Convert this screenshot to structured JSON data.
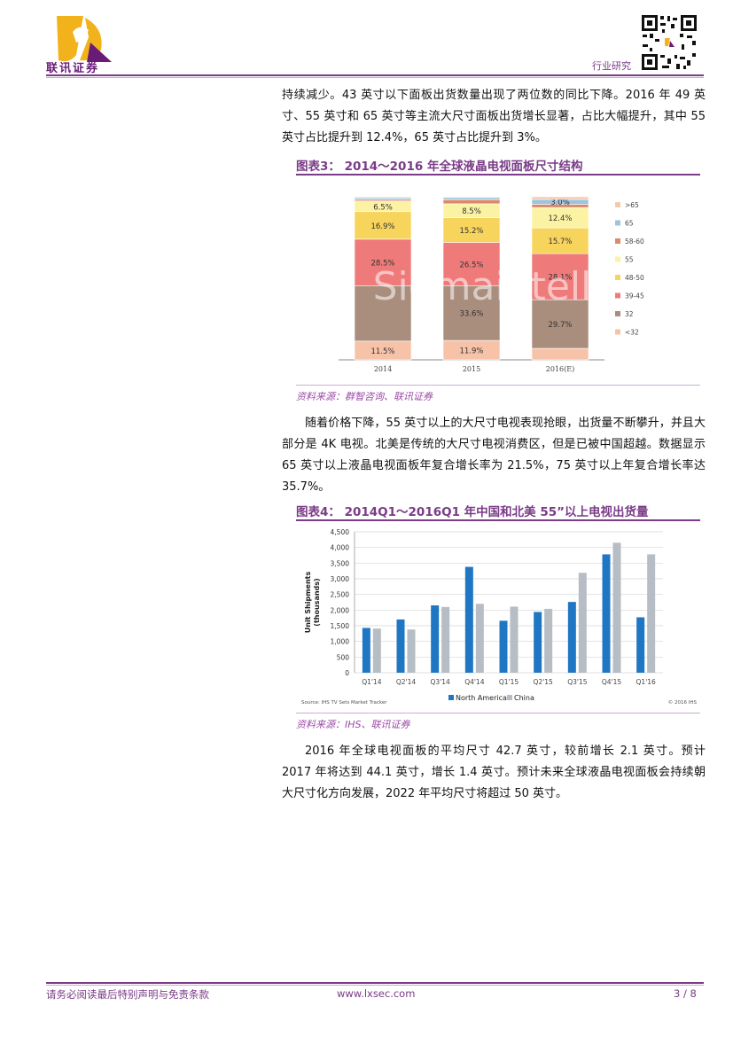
{
  "header": {
    "company_name": "联讯证券",
    "section": "行业研究"
  },
  "paragraphs": {
    "p1": "持续减少。43 英寸以下面板出货数量出现了两位数的同比下降。2016 年 49 英寸、55 英寸和 65 英寸等主流大尺寸面板出货增长显著，占比大幅提升，其中 55 英寸占比提升到 12.4%，65 英寸占比提升到 3%。",
    "p2": "随着价格下降，55 英寸以上的大尺寸电视表现抢眼，出货量不断攀升，并且大部分是 4K 电视。北美是传统的大尺寸电视消费区，但是已被中国超越。数据显示 65 英寸以上液晶电视面板年复合增长率为 21.5%，75 英寸以上年复合增长率达 35.7%。",
    "p3": "2016 年全球电视面板的平均尺寸 42.7 英寸，较前增长 2.1 英寸。预计 2017 年将达到 44.1 英寸，增长 1.4 英寸。预计未来全球液晶电视面板会持续朝大尺寸化方向发展，2022 年平均尺寸将超过 50 英寸。"
  },
  "figure3": {
    "caption": "图表3：  2014～2016 年全球液晶电视面板尺寸结构",
    "source": "资料来源：群智咨询、联讯证券",
    "watermark": "Sigmaintell"
  },
  "figure4": {
    "caption": "图表4：  2014Q1～2016Q1 年中国和北美 55”以上电视出货量",
    "source": "资料来源：IHS、联讯证券",
    "source_note": "Source: IHS TV Sets Market Tracker",
    "copyright": "© 2016 IHS"
  },
  "chart_data": [
    {
      "type": "bar",
      "stacked": true,
      "categories": [
        "2014",
        "2015",
        "2016(E)"
      ],
      "series": [
        {
          "name": "<32",
          "values": [
            11.5,
            11.9,
            7.0
          ],
          "color": "#f7c3a8"
        },
        {
          "name": "32",
          "values": [
            34.0,
            33.6,
            29.7
          ],
          "color": "#a98d7d"
        },
        {
          "name": "39-45",
          "values": [
            28.5,
            26.5,
            28.1
          ],
          "color": "#ef7a7a"
        },
        {
          "name": "48-50",
          "values": [
            16.9,
            15.2,
            15.7
          ],
          "color": "#f7d45c"
        },
        {
          "name": "55",
          "values": [
            6.5,
            8.5,
            12.4
          ],
          "color": "#fbf3a3"
        },
        {
          "name": "58-60",
          "values": [
            1.0,
            2.5,
            2.0
          ],
          "color": "#d88a6a"
        },
        {
          "name": "65",
          "values": [
            1.0,
            1.3,
            3.0
          ],
          "color": "#9ec3dd"
        },
        {
          "name": ">65",
          "values": [
            0.6,
            0.5,
            1.6
          ],
          "color": "#f5c9b0"
        }
      ],
      "labels": {
        "2014": {
          "<32": "11.5%",
          "39-45": "28.5%",
          "48-50": "16.9%",
          "55": "6.5%"
        },
        "2015": {
          "<32": "11.9%",
          "32": "33.6%",
          "39-45": "26.5%",
          "48-50": "15.2%",
          "55": "8.5%"
        },
        "2016(E)": {
          "32": "29.7%",
          "39-45": "28.1%",
          "48-50": "15.7%",
          "55": "12.4%",
          "65": "3.0%"
        }
      },
      "ylim": [
        0,
        100
      ],
      "legend_position": "right"
    },
    {
      "type": "bar",
      "categories": [
        "Q1'14",
        "Q2'14",
        "Q3'14",
        "Q4'14",
        "Q1'15",
        "Q2'15",
        "Q3'15",
        "Q4'15",
        "Q1'16"
      ],
      "series": [
        {
          "name": "North America",
          "values": [
            1430,
            1700,
            2150,
            3380,
            1660,
            1940,
            2260,
            3780,
            1770
          ],
          "color": "#1f77c4"
        },
        {
          "name": "China",
          "values": [
            1410,
            1380,
            2100,
            2200,
            2110,
            2040,
            3190,
            4150,
            3780
          ],
          "color": "#b6bdc4"
        }
      ],
      "ylabel": "Unit Shipments (thousands)",
      "yticks": [
        "0",
        "500",
        "1,000",
        "1,500",
        "2,000",
        "2,500",
        "3,000",
        "3,500",
        "4,000",
        "4,500"
      ],
      "ylim": [
        0,
        4500
      ],
      "grid": true,
      "legend_position": "bottom"
    }
  ],
  "footer": {
    "disclaimer": "请务必阅读最后特别声明与免责条款",
    "website": "www.lxsec.com",
    "page": "3 / 8"
  },
  "colors": {
    "brand": "#7a3b87",
    "logo_gold": "#f2b21b"
  }
}
